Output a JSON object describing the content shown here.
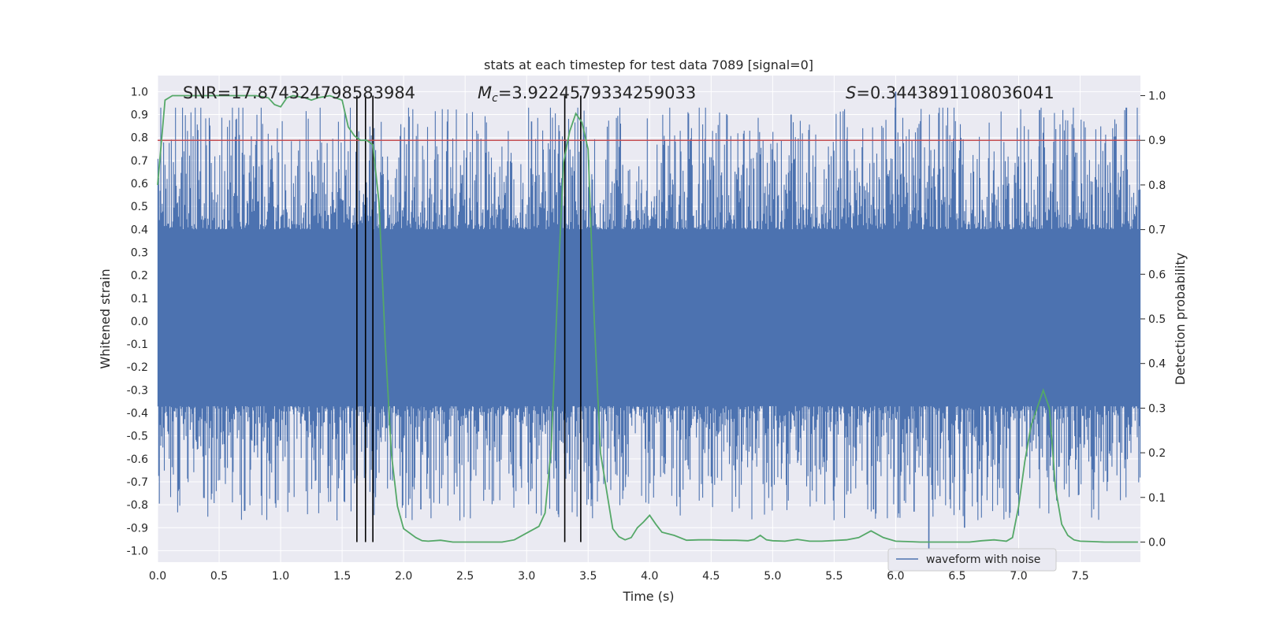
{
  "chart_data": {
    "type": "line",
    "title": "stats at each timestep for test data 7089 [signal=0]",
    "xlabel": "Time (s)",
    "ylabel_left": "Whitened strain",
    "ylabel_right": "Detection probability",
    "xlim": [
      0.0,
      7.99
    ],
    "ylim_left": [
      -1.05,
      1.07
    ],
    "ylim_right": [
      -0.045,
      1.045
    ],
    "x_ticks": [
      "0.0",
      "0.5",
      "1.0",
      "1.5",
      "2.0",
      "2.5",
      "3.0",
      "3.5",
      "4.0",
      "4.5",
      "5.0",
      "5.5",
      "6.0",
      "6.5",
      "7.0",
      "7.5"
    ],
    "y_left_ticks": [
      "1.0",
      "0.9",
      "0.8",
      "0.7",
      "0.6",
      "0.5",
      "0.4",
      "0.3",
      "0.2",
      "0.1",
      "0.0",
      "-0.1",
      "-0.2",
      "-0.3",
      "-0.4",
      "-0.5",
      "-0.6",
      "-0.7",
      "-0.8",
      "-0.9",
      "-1.0"
    ],
    "y_right_ticks": [
      "1.0",
      "0.9",
      "0.8",
      "0.7",
      "0.6",
      "0.5",
      "0.4",
      "0.3",
      "0.2",
      "0.1",
      "0.0"
    ],
    "grid": true,
    "legend_position": "lower-right",
    "annotations": {
      "snr": "SNR=17.874324798583984",
      "mc": "=3.9224579334259033",
      "mc_symbol": "M",
      "mc_subscript": "c",
      "s": "=0.3443891108036041",
      "s_symbol": "S"
    },
    "colors": {
      "waveform": "#4c72b0",
      "probability": "#55a868",
      "threshold": "#c44e52",
      "markers": "#000000",
      "plot_bg": "#eaeaf2",
      "grid": "#ffffff"
    },
    "threshold_probability": 0.9,
    "vertical_markers": [
      1.62,
      1.69,
      1.75,
      3.31,
      3.44
    ],
    "series": [
      {
        "name": "waveform with noise",
        "axis": "left",
        "kind": "dense-noise",
        "band_lower": -0.37,
        "band_upper": 0.4,
        "max_peak": 1.0,
        "min_trough": -1.0
      },
      {
        "axis": "right",
        "x": [
          0.0,
          0.06,
          0.12,
          0.2,
          0.3,
          0.4,
          0.5,
          0.6,
          0.7,
          0.8,
          0.9,
          0.95,
          1.0,
          1.05,
          1.1,
          1.2,
          1.25,
          1.3,
          1.4,
          1.5,
          1.55,
          1.6,
          1.65,
          1.7,
          1.75,
          1.8,
          1.85,
          1.9,
          1.95,
          2.0,
          2.1,
          2.15,
          2.2,
          2.3,
          2.4,
          2.5,
          2.6,
          2.8,
          2.9,
          3.0,
          3.1,
          3.15,
          3.2,
          3.25,
          3.3,
          3.35,
          3.4,
          3.45,
          3.5,
          3.55,
          3.6,
          3.7,
          3.75,
          3.8,
          3.85,
          3.9,
          3.95,
          4.0,
          4.05,
          4.1,
          4.2,
          4.3,
          4.4,
          4.5,
          4.6,
          4.7,
          4.8,
          4.85,
          4.9,
          4.95,
          5.0,
          5.1,
          5.2,
          5.3,
          5.4,
          5.6,
          5.7,
          5.8,
          5.9,
          6.0,
          6.1,
          6.2,
          6.3,
          6.4,
          6.5,
          6.6,
          6.7,
          6.8,
          6.9,
          6.95,
          7.0,
          7.05,
          7.1,
          7.15,
          7.2,
          7.25,
          7.3,
          7.35,
          7.4,
          7.45,
          7.5,
          7.6,
          7.7,
          7.8,
          7.9,
          7.97
        ],
        "y": [
          0.8,
          0.99,
          1.0,
          1.0,
          1.0,
          1.0,
          1.0,
          1.0,
          1.0,
          1.0,
          0.995,
          0.98,
          0.975,
          0.995,
          1.0,
          0.995,
          0.99,
          0.995,
          1.0,
          0.99,
          0.93,
          0.91,
          0.9,
          0.9,
          0.89,
          0.76,
          0.45,
          0.2,
          0.08,
          0.03,
          0.01,
          0.003,
          0.002,
          0.004,
          0.0,
          0.0,
          0.0,
          0.0,
          0.005,
          0.02,
          0.035,
          0.065,
          0.21,
          0.55,
          0.85,
          0.92,
          0.96,
          0.94,
          0.88,
          0.5,
          0.2,
          0.03,
          0.012,
          0.005,
          0.01,
          0.032,
          0.045,
          0.06,
          0.04,
          0.022,
          0.015,
          0.004,
          0.005,
          0.005,
          0.004,
          0.004,
          0.003,
          0.006,
          0.015,
          0.005,
          0.003,
          0.002,
          0.006,
          0.002,
          0.002,
          0.005,
          0.01,
          0.025,
          0.01,
          0.002,
          0.001,
          0.0,
          0.0,
          0.0,
          0.0,
          0.0,
          0.003,
          0.005,
          0.002,
          0.01,
          0.08,
          0.18,
          0.26,
          0.3,
          0.34,
          0.3,
          0.12,
          0.04,
          0.015,
          0.005,
          0.002,
          0.001,
          0.0,
          0.0,
          0.0,
          0.0
        ]
      }
    ]
  }
}
